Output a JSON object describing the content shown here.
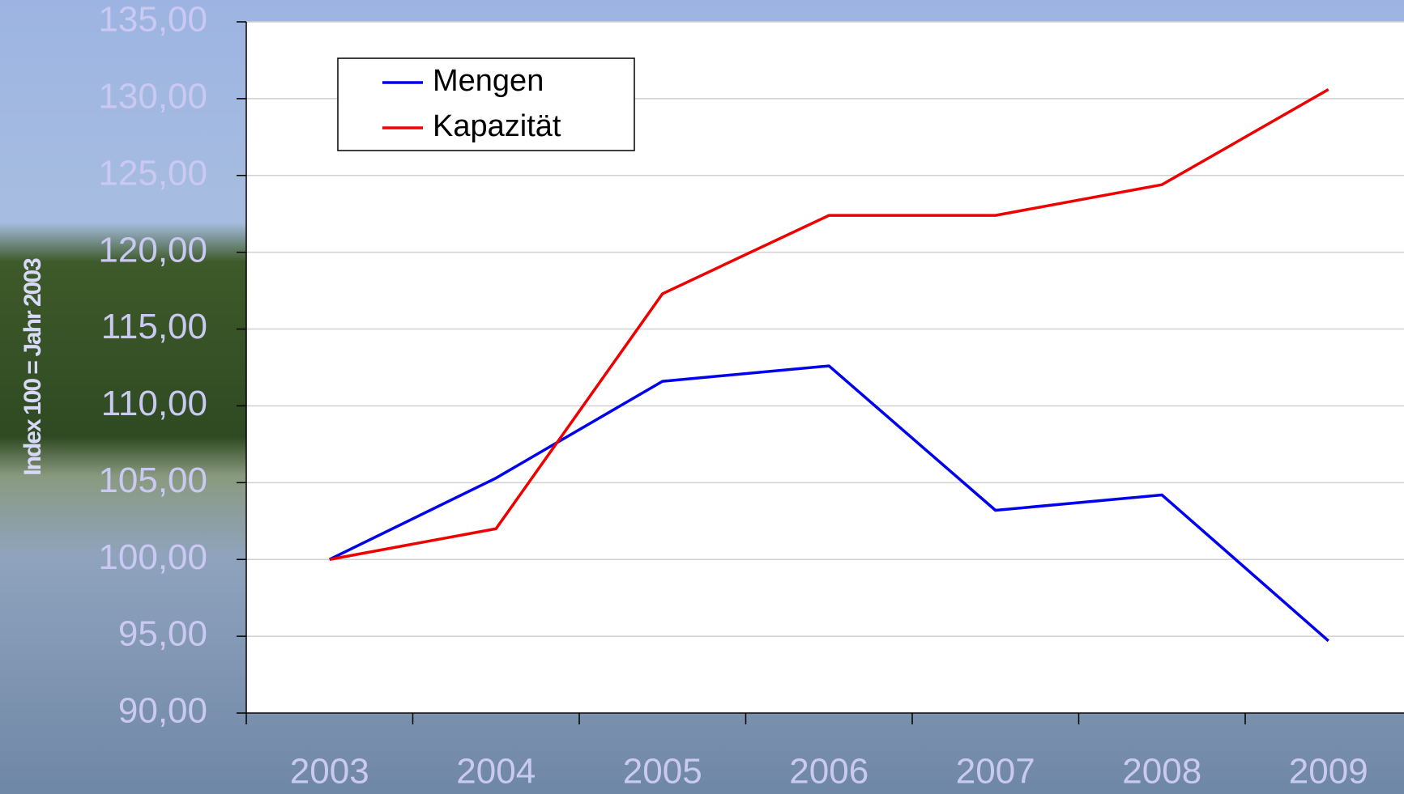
{
  "chart_data": {
    "type": "line",
    "y_label": "Index 100 = Jahr 2003",
    "categories": [
      "2003",
      "2004",
      "2005",
      "2006",
      "2007",
      "2008",
      "2009"
    ],
    "series": [
      {
        "name": "Mengen",
        "color": "#0000ee",
        "values": [
          100,
          105.3,
          111.6,
          112.6,
          103.2,
          104.2,
          94.7
        ]
      },
      {
        "name": "Kapazität",
        "color": "#ee0000",
        "values": [
          100,
          102.0,
          117.3,
          122.4,
          122.4,
          124.4,
          130.6
        ]
      }
    ],
    "ylim": [
      90,
      135
    ],
    "yticks": [
      {
        "value": 90,
        "label": "90,00"
      },
      {
        "value": 95,
        "label": "95,00"
      },
      {
        "value": 100,
        "label": "100,00"
      },
      {
        "value": 105,
        "label": "105,00"
      },
      {
        "value": 110,
        "label": "110,00"
      },
      {
        "value": 115,
        "label": "115,00"
      },
      {
        "value": 120,
        "label": "120,00"
      },
      {
        "value": 125,
        "label": "125,00"
      },
      {
        "value": 130,
        "label": "130,00"
      },
      {
        "value": 135,
        "label": "135,00"
      }
    ],
    "grid": true,
    "legend": "upper left"
  }
}
